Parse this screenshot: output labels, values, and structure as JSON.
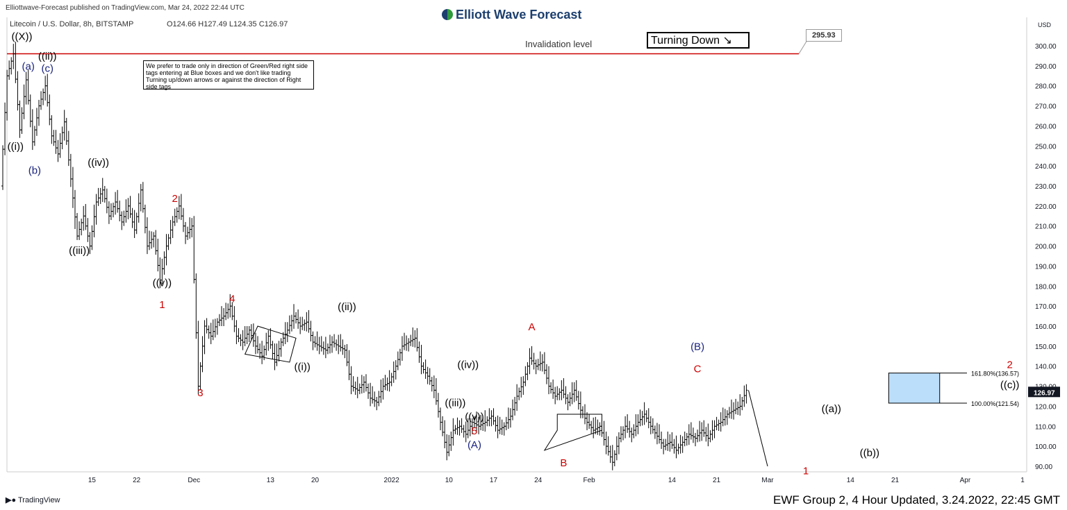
{
  "header": {
    "published": "Elliottwave-Forecast published on TradingView.com, Mar 24, 2022 22:44 UTC",
    "symbol": "Litecoin / U.S. Dollar, 8h, BITSTAMP",
    "ohlc": "O124.66  H127.49  L124.35  C126.97",
    "logo": "Elliott Wave Forecast"
  },
  "note": "We prefer to trade only in direction of Green/Red right side tags entering at Blue boxes and we don't like trading Turning up/down arrows or against the direction of Right side tags",
  "turning": "Turning Down",
  "invalidation": "Invalidation level",
  "invalidation_price": "295.93",
  "footer": {
    "brand": "TradingView",
    "caption": "EWF Group 2, 4 Hour Updated, 3.24.2022, 22:45 GMT"
  },
  "colors": {
    "red": "#cc0000",
    "blue": "#1a237e",
    "box": "#bbdefb",
    "candle": "#000000"
  },
  "chart_data": {
    "type": "bar",
    "currency": "USD",
    "last_price": "126.97",
    "y_ticks": [
      90,
      100,
      110,
      120,
      130,
      140,
      150,
      160,
      170,
      180,
      190,
      200,
      210,
      220,
      230,
      240,
      250,
      260,
      270,
      280,
      290,
      300
    ],
    "ylim": [
      85,
      320
    ],
    "x_ticks": [
      {
        "label": "15",
        "d": 14
      },
      {
        "label": "22",
        "d": 21
      },
      {
        "label": "Dec",
        "d": 30
      },
      {
        "label": "13",
        "d": 42
      },
      {
        "label": "20",
        "d": 49
      },
      {
        "label": "2022",
        "d": 61
      },
      {
        "label": "10",
        "d": 70
      },
      {
        "label": "17",
        "d": 77
      },
      {
        "label": "24",
        "d": 84
      },
      {
        "label": "Feb",
        "d": 92
      },
      {
        "label": "14",
        "d": 105
      },
      {
        "label": "21",
        "d": 112
      },
      {
        "label": "Mar",
        "d": 120
      },
      {
        "label": "14",
        "d": 133
      },
      {
        "label": "21",
        "d": 140
      },
      {
        "label": "Apr",
        "d": 151
      },
      {
        "label": "1",
        "d": 160
      }
    ],
    "xlim": [
      0,
      160
    ],
    "path": [
      [
        0,
        230
      ],
      [
        1,
        285
      ],
      [
        2,
        296
      ],
      [
        3,
        258
      ],
      [
        4,
        283
      ],
      [
        5,
        252
      ],
      [
        6,
        270
      ],
      [
        7,
        280
      ],
      [
        8,
        255
      ],
      [
        9,
        246
      ],
      [
        10,
        262
      ],
      [
        12,
        205
      ],
      [
        13,
        215
      ],
      [
        14,
        200
      ],
      [
        15,
        222
      ],
      [
        16,
        228
      ],
      [
        17,
        215
      ],
      [
        18,
        222
      ],
      [
        19,
        212
      ],
      [
        20,
        220
      ],
      [
        21,
        208
      ],
      [
        22,
        228
      ],
      [
        23,
        200
      ],
      [
        24,
        205
      ],
      [
        25,
        183
      ],
      [
        26,
        200
      ],
      [
        27,
        212
      ],
      [
        28,
        220
      ],
      [
        29,
        205
      ],
      [
        30,
        210
      ],
      [
        31,
        130
      ],
      [
        32,
        160
      ],
      [
        33,
        155
      ],
      [
        34,
        162
      ],
      [
        35,
        165
      ],
      [
        36,
        170
      ],
      [
        37,
        155
      ],
      [
        38,
        152
      ],
      [
        39,
        158
      ],
      [
        40,
        150
      ],
      [
        41,
        145
      ],
      [
        42,
        155
      ],
      [
        43,
        142
      ],
      [
        44,
        152
      ],
      [
        45,
        158
      ],
      [
        46,
        165
      ],
      [
        47,
        160
      ],
      [
        48,
        162
      ],
      [
        49,
        152
      ],
      [
        50,
        150
      ],
      [
        51,
        148
      ],
      [
        52,
        152
      ],
      [
        53,
        150
      ],
      [
        54,
        148
      ],
      [
        55,
        130
      ],
      [
        56,
        128
      ],
      [
        57,
        132
      ],
      [
        58,
        124
      ],
      [
        59,
        122
      ],
      [
        60,
        130
      ],
      [
        61,
        132
      ],
      [
        62,
        140
      ],
      [
        63,
        150
      ],
      [
        64,
        152
      ],
      [
        65,
        154
      ],
      [
        66,
        140
      ],
      [
        67,
        135
      ],
      [
        68,
        128
      ],
      [
        69,
        112
      ],
      [
        70,
        97
      ],
      [
        71,
        108
      ],
      [
        72,
        110
      ],
      [
        73,
        106
      ],
      [
        74,
        112
      ],
      [
        75,
        110
      ],
      [
        76,
        112
      ],
      [
        77,
        115
      ],
      [
        78,
        108
      ],
      [
        79,
        110
      ],
      [
        80,
        115
      ],
      [
        81,
        125
      ],
      [
        82,
        132
      ],
      [
        83,
        144
      ],
      [
        84,
        140
      ],
      [
        85,
        142
      ],
      [
        86,
        130
      ],
      [
        87,
        125
      ],
      [
        88,
        128
      ],
      [
        89,
        122
      ],
      [
        90,
        128
      ],
      [
        91,
        118
      ],
      [
        92,
        112
      ],
      [
        93,
        108
      ],
      [
        94,
        110
      ],
      [
        95,
        100
      ],
      [
        96,
        92
      ],
      [
        97,
        104
      ],
      [
        98,
        110
      ],
      [
        99,
        106
      ],
      [
        100,
        112
      ],
      [
        101,
        116
      ],
      [
        102,
        110
      ],
      [
        103,
        105
      ],
      [
        104,
        100
      ],
      [
        105,
        102
      ],
      [
        106,
        98
      ],
      [
        107,
        102
      ],
      [
        108,
        106
      ],
      [
        109,
        104
      ],
      [
        110,
        108
      ],
      [
        111,
        104
      ],
      [
        112,
        110
      ],
      [
        113,
        112
      ],
      [
        114,
        116
      ],
      [
        115,
        118
      ],
      [
        116,
        120
      ],
      [
        117,
        128
      ]
    ],
    "box": {
      "d0": 139,
      "d1": 147,
      "y0": 121.54,
      "y1": 136.57,
      "label_top": "161.80%(136.57)",
      "label_bottom": "100.00%(121.54)"
    },
    "arrow": [
      [
        117,
        128
      ],
      [
        120,
        90
      ]
    ],
    "triangles": [
      [
        [
          40,
          160
        ],
        [
          46,
          154
        ],
        [
          45,
          142
        ],
        [
          38,
          146
        ]
      ],
      [
        [
          85,
          98
        ],
        [
          94,
          108
        ],
        [
          94,
          116
        ],
        [
          87,
          116
        ],
        [
          87,
          108
        ]
      ]
    ],
    "labels": [
      {
        "t": "((X))",
        "d": 3,
        "y": 303,
        "c": "black"
      },
      {
        "t": "((ii))",
        "d": 7,
        "y": 293,
        "c": "black"
      },
      {
        "t": "(a)",
        "d": 4,
        "y": 288,
        "c": "blue"
      },
      {
        "t": "(c)",
        "d": 7,
        "y": 287,
        "c": "blue"
      },
      {
        "t": "((i))",
        "d": 2,
        "y": 248,
        "c": "black"
      },
      {
        "t": "(b)",
        "d": 5,
        "y": 236,
        "c": "blue"
      },
      {
        "t": "((iv))",
        "d": 15,
        "y": 240,
        "c": "black"
      },
      {
        "t": "((iii))",
        "d": 12,
        "y": 196,
        "c": "black"
      },
      {
        "t": "2",
        "d": 27,
        "y": 222,
        "c": "red"
      },
      {
        "t": "((v))",
        "d": 25,
        "y": 180,
        "c": "black"
      },
      {
        "t": "1",
        "d": 25,
        "y": 169,
        "c": "red"
      },
      {
        "t": "4",
        "d": 36,
        "y": 172,
        "c": "red"
      },
      {
        "t": "3",
        "d": 31,
        "y": 125,
        "c": "red"
      },
      {
        "t": "((i))",
        "d": 47,
        "y": 138,
        "c": "black"
      },
      {
        "t": "((ii))",
        "d": 54,
        "y": 168,
        "c": "black"
      },
      {
        "t": "((iv))",
        "d": 73,
        "y": 139,
        "c": "black"
      },
      {
        "t": "((iii))",
        "d": 71,
        "y": 120,
        "c": "black"
      },
      {
        "t": "((v))",
        "d": 74,
        "y": 113,
        "c": "black"
      },
      {
        "t": "5",
        "d": 74,
        "y": 106,
        "c": "red"
      },
      {
        "t": "(A)",
        "d": 74,
        "y": 99,
        "c": "blue"
      },
      {
        "t": "A",
        "d": 83,
        "y": 158,
        "c": "red"
      },
      {
        "t": "B",
        "d": 88,
        "y": 90,
        "c": "red"
      },
      {
        "t": "(B)",
        "d": 109,
        "y": 148,
        "c": "blue"
      },
      {
        "t": "C",
        "d": 109,
        "y": 137,
        "c": "red"
      },
      {
        "t": "((a))",
        "d": 130,
        "y": 117,
        "c": "black"
      },
      {
        "t": "1",
        "d": 126,
        "y": 86,
        "c": "red"
      },
      {
        "t": "((b))",
        "d": 136,
        "y": 95,
        "c": "black"
      },
      {
        "t": "2",
        "d": 158,
        "y": 139,
        "c": "red"
      },
      {
        "t": "((c))",
        "d": 158,
        "y": 129,
        "c": "black"
      }
    ]
  }
}
